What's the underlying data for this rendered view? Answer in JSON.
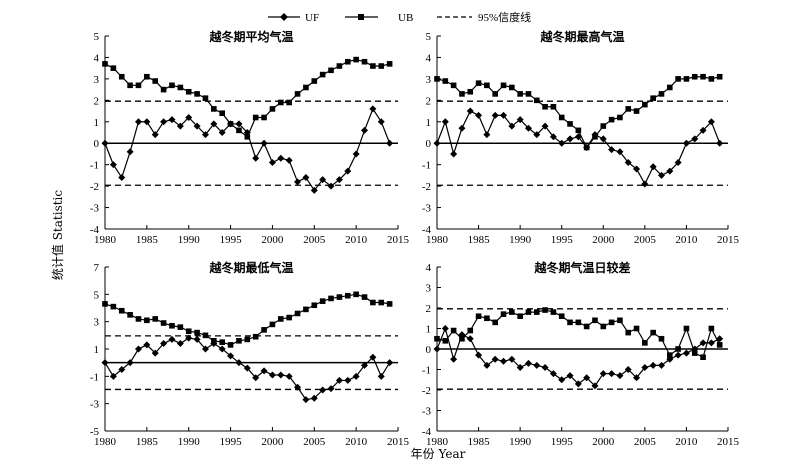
{
  "legend": {
    "uf": "UF",
    "ub": "UB",
    "ci": "95%信度线"
  },
  "xlabel": "年份 Year",
  "ylabel": "统计值 Statistic",
  "chart_data": [
    {
      "type": "line",
      "title": "越冬期平均气温",
      "x": [
        1980,
        1981,
        1982,
        1983,
        1984,
        1985,
        1986,
        1987,
        1988,
        1989,
        1990,
        1991,
        1992,
        1993,
        1994,
        1995,
        1996,
        1997,
        1998,
        1999,
        2000,
        2001,
        2002,
        2003,
        2004,
        2005,
        2006,
        2007,
        2008,
        2009,
        2010,
        2011,
        2012,
        2013,
        2014
      ],
      "xlim": [
        1980,
        2015
      ],
      "xticks": [
        1980,
        1985,
        1990,
        1995,
        2000,
        2005,
        2010,
        2015
      ],
      "ylim": [
        -4,
        5
      ],
      "yticks": [
        -4,
        -3,
        -2,
        -1,
        0,
        1,
        2,
        3,
        4,
        5
      ],
      "ci": [
        1.96,
        -1.96
      ],
      "series": [
        {
          "name": "UF",
          "marker": "diamond",
          "values": [
            0,
            -1.0,
            -1.6,
            -0.4,
            1.0,
            1.0,
            0.4,
            1.0,
            1.1,
            0.8,
            1.2,
            0.8,
            0.4,
            0.9,
            0.5,
            0.9,
            0.9,
            0.5,
            -0.7,
            0.0,
            -0.9,
            -0.7,
            -0.8,
            -1.8,
            -1.6,
            -2.2,
            -1.7,
            -2.0,
            -1.7,
            -1.3,
            -0.5,
            0.6,
            1.6,
            1.0,
            0.0
          ]
        },
        {
          "name": "UB",
          "marker": "square",
          "values": [
            3.7,
            3.5,
            3.1,
            2.7,
            2.7,
            3.1,
            2.9,
            2.5,
            2.7,
            2.6,
            2.4,
            2.3,
            2.1,
            1.6,
            1.4,
            0.9,
            0.6,
            0.3,
            1.2,
            1.2,
            1.6,
            1.9,
            1.9,
            2.3,
            2.6,
            2.9,
            3.2,
            3.4,
            3.6,
            3.8,
            3.9,
            3.8,
            3.6,
            3.6,
            3.7
          ]
        }
      ]
    },
    {
      "type": "line",
      "title": "越冬期最高气温",
      "x": [
        1980,
        1981,
        1982,
        1983,
        1984,
        1985,
        1986,
        1987,
        1988,
        1989,
        1990,
        1991,
        1992,
        1993,
        1994,
        1995,
        1996,
        1997,
        1998,
        1999,
        2000,
        2001,
        2002,
        2003,
        2004,
        2005,
        2006,
        2007,
        2008,
        2009,
        2010,
        2011,
        2012,
        2013,
        2014
      ],
      "xlim": [
        1980,
        2015
      ],
      "xticks": [
        1980,
        1985,
        1990,
        1995,
        2000,
        2005,
        2010,
        2015
      ],
      "ylim": [
        -4,
        5
      ],
      "yticks": [
        -4,
        -3,
        -2,
        -1,
        0,
        1,
        2,
        3,
        4,
        5
      ],
      "ci": [
        1.96,
        -1.96
      ],
      "series": [
        {
          "name": "UF",
          "marker": "diamond",
          "values": [
            0,
            1.0,
            -0.5,
            0.7,
            1.5,
            1.3,
            0.4,
            1.3,
            1.3,
            0.8,
            1.1,
            0.7,
            0.4,
            0.8,
            0.3,
            0.0,
            0.2,
            0.3,
            -0.2,
            0.4,
            0.2,
            -0.3,
            -0.4,
            -0.9,
            -1.2,
            -1.9,
            -1.1,
            -1.5,
            -1.3,
            -0.9,
            0.0,
            0.2,
            0.6,
            1.0,
            0.0
          ]
        },
        {
          "name": "UB",
          "marker": "square",
          "values": [
            3.0,
            2.9,
            2.7,
            2.3,
            2.4,
            2.8,
            2.7,
            2.3,
            2.7,
            2.6,
            2.3,
            2.3,
            2.0,
            1.7,
            1.7,
            1.2,
            0.9,
            0.6,
            -0.2,
            0.3,
            0.8,
            1.1,
            1.2,
            1.6,
            1.5,
            1.8,
            2.1,
            2.3,
            2.6,
            3.0,
            3.0,
            3.1,
            3.1,
            3.0,
            3.1
          ]
        }
      ]
    },
    {
      "type": "line",
      "title": "越冬期最低气温",
      "x": [
        1980,
        1981,
        1982,
        1983,
        1984,
        1985,
        1986,
        1987,
        1988,
        1989,
        1990,
        1991,
        1992,
        1993,
        1994,
        1995,
        1996,
        1997,
        1998,
        1999,
        2000,
        2001,
        2002,
        2003,
        2004,
        2005,
        2006,
        2007,
        2008,
        2009,
        2010,
        2011,
        2012,
        2013,
        2014
      ],
      "xlim": [
        1980,
        2015
      ],
      "xticks": [
        1980,
        1985,
        1990,
        1995,
        2000,
        2005,
        2010,
        2015
      ],
      "ylim": [
        -5,
        7
      ],
      "yticks": [
        -5,
        -3,
        -1,
        1,
        3,
        5,
        7
      ],
      "ci": [
        1.96,
        -1.96
      ],
      "series": [
        {
          "name": "UF",
          "marker": "diamond",
          "values": [
            0,
            -1.0,
            -0.5,
            0.0,
            1.0,
            1.3,
            0.7,
            1.4,
            1.7,
            1.4,
            1.8,
            1.7,
            1.0,
            1.4,
            1.0,
            0.5,
            0.0,
            -0.4,
            -1.1,
            -0.6,
            -0.9,
            -0.9,
            -1.0,
            -1.8,
            -2.7,
            -2.6,
            -2.0,
            -1.9,
            -1.3,
            -1.3,
            -1.0,
            -0.2,
            0.4,
            -1.0,
            0.0
          ]
        },
        {
          "name": "UB",
          "marker": "square",
          "values": [
            4.3,
            4.1,
            3.8,
            3.5,
            3.2,
            3.1,
            3.2,
            2.9,
            2.7,
            2.6,
            2.3,
            2.2,
            2.0,
            1.6,
            1.5,
            1.3,
            1.6,
            1.7,
            1.9,
            2.4,
            2.8,
            3.2,
            3.3,
            3.6,
            3.9,
            4.2,
            4.5,
            4.7,
            4.8,
            4.9,
            5.0,
            4.8,
            4.4,
            4.4,
            4.3
          ]
        }
      ]
    },
    {
      "type": "line",
      "title": "越冬期气温日较差",
      "x": [
        1980,
        1981,
        1982,
        1983,
        1984,
        1985,
        1986,
        1987,
        1988,
        1989,
        1990,
        1991,
        1992,
        1993,
        1994,
        1995,
        1996,
        1997,
        1998,
        1999,
        2000,
        2001,
        2002,
        2003,
        2004,
        2005,
        2006,
        2007,
        2008,
        2009,
        2010,
        2011,
        2012,
        2013,
        2014
      ],
      "xlim": [
        1980,
        2015
      ],
      "xticks": [
        1980,
        1985,
        1990,
        1995,
        2000,
        2005,
        2010,
        2015
      ],
      "ylim": [
        -4,
        4
      ],
      "yticks": [
        -4,
        -3,
        -2,
        -1,
        0,
        1,
        2,
        3,
        4
      ],
      "ci": [
        1.96,
        -1.96
      ],
      "series": [
        {
          "name": "UF",
          "marker": "diamond",
          "values": [
            0,
            1.0,
            -0.5,
            0.7,
            0.5,
            -0.3,
            -0.8,
            -0.5,
            -0.6,
            -0.5,
            -0.9,
            -0.7,
            -0.8,
            -0.9,
            -1.2,
            -1.5,
            -1.3,
            -1.7,
            -1.4,
            -1.8,
            -1.2,
            -1.2,
            -1.3,
            -1.0,
            -1.4,
            -0.9,
            -0.8,
            -0.8,
            -0.5,
            -0.3,
            -0.2,
            0.0,
            0.3,
            0.3,
            0.5
          ]
        },
        {
          "name": "UB",
          "marker": "square",
          "values": [
            0.5,
            0.4,
            0.9,
            0.5,
            0.9,
            1.6,
            1.5,
            1.3,
            1.7,
            1.8,
            1.6,
            1.8,
            1.8,
            1.9,
            1.8,
            1.6,
            1.3,
            1.3,
            1.1,
            1.4,
            1.1,
            1.3,
            1.4,
            0.8,
            1.0,
            0.3,
            0.8,
            0.5,
            -0.3,
            0.0,
            1.0,
            -0.2,
            -0.4,
            1.0,
            0.2
          ]
        }
      ]
    }
  ]
}
